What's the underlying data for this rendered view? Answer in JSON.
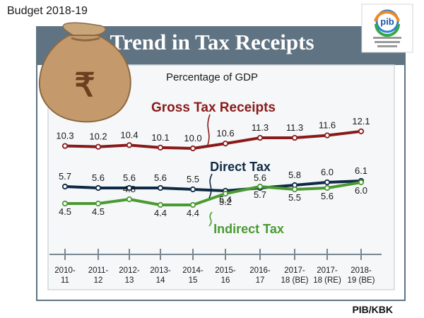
{
  "header": {
    "budget_label": "Budget 2018-19"
  },
  "logo": {
    "text": "pib"
  },
  "footer": {
    "credit": "PIB/KBK"
  },
  "icon": "rupee-money-bag-icon",
  "colors": {
    "frame": "#5f7382",
    "gross": "#8a1a1a",
    "direct": "#0f2a45",
    "indirect": "#4a9a32",
    "text": "#1a1a1a"
  },
  "chart_data": {
    "type": "line",
    "title": "Trend in Tax Receipts",
    "subtitle": "Percentage of GDP",
    "categories": [
      [
        "2010-",
        "11"
      ],
      [
        "2011-",
        "12"
      ],
      [
        "2012-",
        "13"
      ],
      [
        "2013-",
        "14"
      ],
      [
        "2014-",
        "15"
      ],
      [
        "2015-",
        "16"
      ],
      [
        "2016-",
        "17"
      ],
      [
        "2017-",
        "18 (BE)"
      ],
      [
        "2017-",
        "18 (RE)"
      ],
      [
        "2018-",
        "19 (BE)"
      ]
    ],
    "series": [
      {
        "name": "Gross Tax Receipts",
        "values": [
          10.3,
          10.2,
          10.4,
          10.1,
          10.0,
          10.6,
          11.3,
          11.3,
          11.6,
          12.1
        ]
      },
      {
        "name": "Direct Tax",
        "values": [
          5.7,
          5.6,
          5.6,
          5.6,
          5.5,
          5.4,
          5.6,
          5.8,
          6.0,
          6.1
        ]
      },
      {
        "name": "Indirect Tax",
        "values": [
          4.5,
          4.5,
          4.8,
          4.4,
          4.4,
          5.2,
          5.7,
          5.5,
          5.6,
          6.0
        ]
      }
    ],
    "legend": "inline labels near lines",
    "grid": false
  }
}
